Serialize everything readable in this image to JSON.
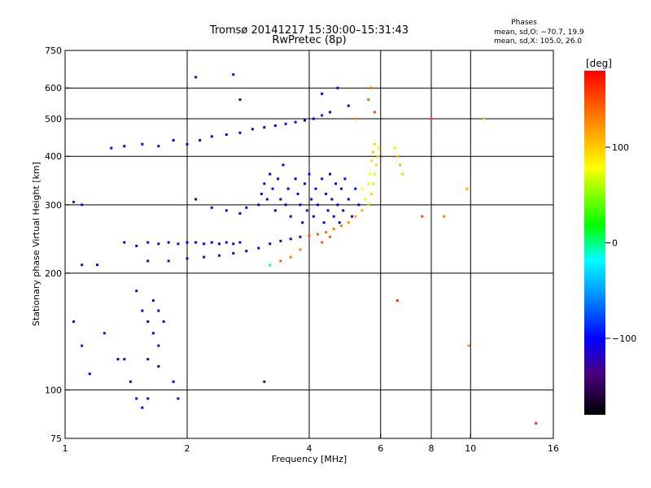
{
  "chart_data": {
    "type": "scatter",
    "title": "Tromsø 20141217 15:30:00–15:31:43",
    "subtitle": "RwPretec (8p)",
    "xlabel": "Frequency [MHz]",
    "ylabel": "Stationary phase Virtual Height [km]",
    "xscale": "log",
    "yscale": "log",
    "xlim": [
      1,
      16
    ],
    "ylim": [
      75,
      750
    ],
    "xticks": [
      1,
      2,
      4,
      6,
      8,
      10,
      16
    ],
    "xgrid": [
      2,
      4,
      6,
      8,
      10
    ],
    "yticks": [
      75,
      100,
      200,
      300,
      400,
      500,
      600,
      750
    ],
    "ygrid": [
      100,
      200,
      300,
      400,
      500,
      600
    ],
    "grid": true,
    "legend": {
      "title": "Phases",
      "lines": [
        "mean, sd,O: −70.7, 19.9",
        "mean, sd,X: 105.0, 26.0"
      ],
      "position": "top-right"
    },
    "colorbar": {
      "label": "[deg]",
      "range": [
        -180,
        180
      ],
      "ticks": [
        100,
        0,
        -100
      ],
      "colormap": "rainbow"
    },
    "series": [
      {
        "mode": "O",
        "points": [
          [
            1.3,
            420,
            -100
          ],
          [
            1.4,
            425,
            -105
          ],
          [
            1.55,
            430,
            -100
          ],
          [
            1.7,
            425,
            -110
          ],
          [
            1.85,
            440,
            -105
          ],
          [
            2.0,
            430,
            -110
          ],
          [
            2.15,
            440,
            -100
          ],
          [
            2.3,
            450,
            -105
          ],
          [
            2.5,
            455,
            -110
          ],
          [
            2.7,
            460,
            -100
          ],
          [
            2.9,
            470,
            -105
          ],
          [
            3.1,
            475,
            -110
          ],
          [
            3.3,
            480,
            -100
          ],
          [
            3.5,
            485,
            -95
          ],
          [
            3.7,
            490,
            -105
          ],
          [
            3.9,
            495,
            -100
          ],
          [
            4.1,
            500,
            -110
          ],
          [
            4.3,
            510,
            -90
          ],
          [
            4.5,
            520,
            -100
          ],
          [
            1.4,
            240,
            -110
          ],
          [
            1.5,
            235,
            -100
          ],
          [
            1.6,
            240,
            -115
          ],
          [
            1.7,
            238,
            -105
          ],
          [
            1.8,
            240,
            -110
          ],
          [
            1.9,
            238,
            -95
          ],
          [
            2.0,
            240,
            -105
          ],
          [
            2.1,
            240,
            -110
          ],
          [
            2.2,
            238,
            -100
          ],
          [
            2.3,
            240,
            -115
          ],
          [
            2.4,
            238,
            -105
          ],
          [
            2.5,
            240,
            -95
          ],
          [
            2.6,
            238,
            -110
          ],
          [
            2.7,
            240,
            -100
          ],
          [
            1.6,
            215,
            -110
          ],
          [
            1.8,
            215,
            -130
          ],
          [
            2.0,
            218,
            -120
          ],
          [
            2.2,
            220,
            -115
          ],
          [
            2.4,
            222,
            -110
          ],
          [
            2.6,
            225,
            -105
          ],
          [
            2.8,
            228,
            -110
          ],
          [
            3.0,
            232,
            -100
          ],
          [
            3.2,
            238,
            -105
          ],
          [
            3.4,
            242,
            -110
          ],
          [
            3.6,
            245,
            -100
          ],
          [
            3.8,
            248,
            -95
          ],
          [
            2.1,
            310,
            -110
          ],
          [
            2.3,
            295,
            -100
          ],
          [
            2.5,
            290,
            -115
          ],
          [
            2.7,
            285,
            -105
          ],
          [
            2.8,
            295,
            -110
          ],
          [
            3.0,
            300,
            -110
          ],
          [
            3.05,
            320,
            -105
          ],
          [
            3.1,
            340,
            -115
          ],
          [
            3.15,
            310,
            -100
          ],
          [
            3.2,
            360,
            -110
          ],
          [
            3.25,
            330,
            -105
          ],
          [
            3.3,
            290,
            -120
          ],
          [
            3.35,
            350,
            -100
          ],
          [
            3.4,
            310,
            -110
          ],
          [
            3.45,
            380,
            -105
          ],
          [
            3.5,
            300,
            -115
          ],
          [
            3.55,
            330,
            -100
          ],
          [
            3.6,
            280,
            -110
          ],
          [
            3.7,
            350,
            -105
          ],
          [
            3.75,
            320,
            -115
          ],
          [
            3.8,
            300,
            -100
          ],
          [
            3.85,
            270,
            -110
          ],
          [
            3.9,
            340,
            -105
          ],
          [
            3.95,
            290,
            -120
          ],
          [
            4.0,
            360,
            -100
          ],
          [
            4.05,
            310,
            -110
          ],
          [
            4.1,
            280,
            -105
          ],
          [
            4.15,
            330,
            -115
          ],
          [
            4.2,
            300,
            -100
          ],
          [
            4.3,
            350,
            -110
          ],
          [
            4.35,
            270,
            -105
          ],
          [
            4.4,
            320,
            -115
          ],
          [
            4.45,
            290,
            -100
          ],
          [
            4.5,
            360,
            -110
          ],
          [
            4.55,
            310,
            -105
          ],
          [
            4.6,
            280,
            -115
          ],
          [
            4.65,
            340,
            -100
          ],
          [
            4.7,
            300,
            -110
          ],
          [
            4.75,
            270,
            -105
          ],
          [
            4.8,
            330,
            -115
          ],
          [
            4.85,
            290,
            -100
          ],
          [
            4.9,
            350,
            -110
          ],
          [
            5.0,
            310,
            -105
          ],
          [
            5.1,
            280,
            -115
          ],
          [
            5.2,
            330,
            -100
          ],
          [
            5.3,
            300,
            -110
          ],
          [
            1.05,
            305,
            -90
          ],
          [
            1.1,
            300,
            -95
          ],
          [
            1.1,
            210,
            -95
          ],
          [
            1.2,
            210,
            -100
          ],
          [
            1.05,
            150,
            -95
          ],
          [
            1.1,
            130,
            -90
          ],
          [
            1.15,
            110,
            -100
          ],
          [
            1.25,
            140,
            -95
          ],
          [
            1.35,
            120,
            -105
          ],
          [
            1.5,
            180,
            -120
          ],
          [
            1.55,
            160,
            -110
          ],
          [
            1.6,
            150,
            -115
          ],
          [
            1.65,
            140,
            -105
          ],
          [
            1.7,
            130,
            -110
          ],
          [
            1.6,
            120,
            -120
          ],
          [
            1.65,
            170,
            -105
          ],
          [
            1.7,
            160,
            -110
          ],
          [
            1.75,
            150,
            -115
          ],
          [
            1.7,
            115,
            -125
          ],
          [
            1.4,
            120,
            -115
          ],
          [
            1.45,
            105,
            -110
          ],
          [
            1.5,
            95,
            -105
          ],
          [
            1.55,
            90,
            -100
          ],
          [
            1.6,
            95,
            -110
          ],
          [
            1.85,
            105,
            -115
          ],
          [
            1.9,
            95,
            -110
          ],
          [
            3.1,
            105,
            -130
          ],
          [
            2.1,
            640,
            -110
          ],
          [
            2.6,
            650,
            -115
          ],
          [
            2.7,
            560,
            -110
          ],
          [
            4.3,
            580,
            -100
          ],
          [
            4.7,
            600,
            -110
          ],
          [
            5.0,
            540,
            -120
          ]
        ]
      },
      {
        "mode": "X",
        "points": [
          [
            4.0,
            250,
            150
          ],
          [
            4.2,
            252,
            140
          ],
          [
            4.4,
            255,
            135
          ],
          [
            4.6,
            260,
            130
          ],
          [
            4.8,
            265,
            125
          ],
          [
            5.0,
            270,
            120
          ],
          [
            5.2,
            280,
            115
          ],
          [
            5.4,
            290,
            110
          ],
          [
            5.6,
            300,
            100
          ],
          [
            5.7,
            320,
            95
          ],
          [
            5.75,
            340,
            90
          ],
          [
            5.8,
            360,
            85
          ],
          [
            5.85,
            380,
            95
          ],
          [
            5.9,
            400,
            100
          ],
          [
            5.95,
            420,
            90
          ],
          [
            5.4,
            330,
            80
          ],
          [
            5.5,
            310,
            70
          ],
          [
            5.6,
            340,
            75
          ],
          [
            5.65,
            360,
            80
          ],
          [
            5.7,
            390,
            90
          ],
          [
            5.75,
            410,
            100
          ],
          [
            5.8,
            430,
            95
          ],
          [
            3.4,
            215,
            140
          ],
          [
            3.6,
            220,
            135
          ],
          [
            3.8,
            230,
            130
          ],
          [
            4.3,
            240,
            145
          ],
          [
            4.5,
            248,
            140
          ],
          [
            5.6,
            560,
            140
          ],
          [
            5.7,
            600,
            130
          ],
          [
            5.8,
            520,
            150
          ],
          [
            5.2,
            500,
            120
          ],
          [
            6.6,
            400,
            105
          ],
          [
            6.7,
            380,
            110
          ],
          [
            6.8,
            360,
            100
          ],
          [
            6.5,
            420,
            90
          ],
          [
            6.6,
            170,
            160
          ],
          [
            7.6,
            280,
            155
          ],
          [
            8.0,
            500,
            150
          ],
          [
            8.6,
            280,
            130
          ],
          [
            9.8,
            330,
            110
          ],
          [
            9.9,
            130,
            130
          ],
          [
            10.8,
            500,
            100
          ],
          [
            14.5,
            82,
            160
          ],
          [
            3.2,
            210,
            -10
          ]
        ]
      }
    ]
  }
}
